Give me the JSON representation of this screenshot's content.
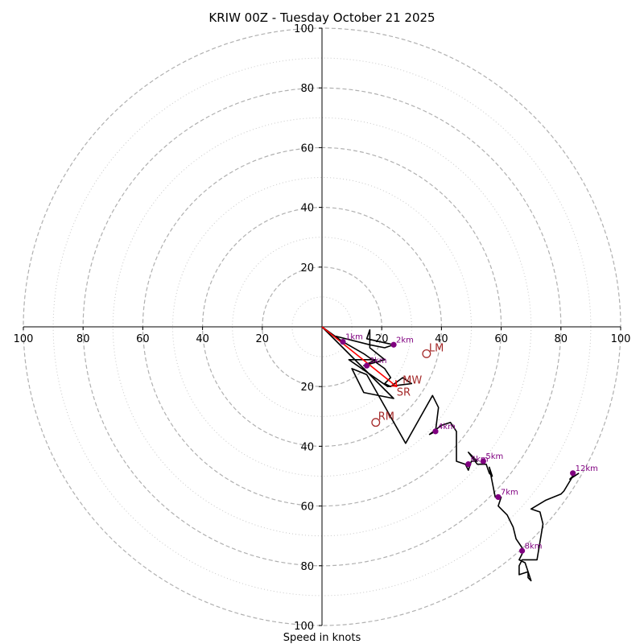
{
  "chart_data": {
    "type": "hodograph",
    "title": "KRIW 00Z - Tuesday October 21 2025",
    "xlabel": "Speed in knots",
    "xlim": [
      -100,
      100
    ],
    "ylim": [
      -100,
      100
    ],
    "tick_labels_x": [
      "100",
      "80",
      "60",
      "40",
      "20",
      "20",
      "40",
      "60",
      "80",
      "100"
    ],
    "tick_labels_y": [
      "100",
      "80",
      "60",
      "40",
      "20",
      "20",
      "40",
      "60",
      "80",
      "100"
    ],
    "major_rings": [
      20,
      40,
      60,
      80,
      100
    ],
    "minor_rings": [
      10,
      30,
      50,
      70,
      90
    ],
    "hodograph_trace": [
      [
        0,
        0
      ],
      [
        7,
        -5
      ],
      [
        14,
        -9
      ],
      [
        21,
        -14
      ],
      [
        23,
        -17
      ],
      [
        21,
        -19
      ],
      [
        23,
        -20
      ],
      [
        27,
        -17
      ],
      [
        30,
        -19
      ],
      [
        22,
        -20
      ],
      [
        9,
        -11
      ],
      [
        18,
        -11
      ],
      [
        14,
        -13
      ],
      [
        21,
        -11
      ],
      [
        16,
        -7
      ],
      [
        16,
        -1
      ],
      [
        15,
        -4
      ],
      [
        24,
        -6
      ],
      [
        21,
        -7
      ],
      [
        16,
        -6
      ],
      [
        4,
        -3
      ],
      [
        0,
        0
      ],
      [
        24,
        -24
      ],
      [
        14,
        -22
      ],
      [
        10,
        -14
      ],
      [
        15,
        -16
      ],
      [
        28,
        -39
      ],
      [
        37,
        -23
      ],
      [
        39,
        -27
      ],
      [
        38,
        -35
      ],
      [
        36,
        -36
      ],
      [
        40,
        -33
      ],
      [
        43,
        -32
      ],
      [
        45,
        -35
      ],
      [
        45,
        -45
      ],
      [
        48,
        -46
      ],
      [
        49,
        -48
      ],
      [
        50,
        -45
      ],
      [
        52,
        -45
      ],
      [
        49,
        -42
      ],
      [
        52,
        -46
      ],
      [
        55,
        -46
      ],
      [
        56,
        -49
      ],
      [
        57,
        -50
      ],
      [
        56,
        -47
      ],
      [
        58,
        -57
      ],
      [
        60,
        -57
      ],
      [
        59,
        -60
      ],
      [
        62,
        -63
      ],
      [
        64,
        -67
      ],
      [
        65,
        -71
      ],
      [
        67,
        -74
      ],
      [
        67,
        -76
      ],
      [
        66,
        -78
      ],
      [
        68,
        -79
      ],
      [
        69,
        -82
      ],
      [
        70,
        -85
      ],
      [
        69,
        -84
      ],
      [
        69,
        -82
      ],
      [
        66,
        -83
      ],
      [
        66,
        -80
      ],
      [
        67,
        -78
      ],
      [
        69,
        -78
      ],
      [
        72,
        -78
      ],
      [
        74,
        -66
      ],
      [
        73,
        -62
      ],
      [
        70,
        -61
      ],
      [
        75,
        -58
      ],
      [
        80,
        -56
      ],
      [
        81,
        -55
      ],
      [
        84,
        -50
      ],
      [
        83,
        -51
      ],
      [
        86,
        -49
      ]
    ],
    "height_markers": [
      {
        "label": "1km",
        "u": 7,
        "v": -5
      },
      {
        "label": "2km",
        "u": 24,
        "v": -6
      },
      {
        "label": "3km",
        "u": 15,
        "v": -13
      },
      {
        "label": "4km",
        "u": 38,
        "v": -35
      },
      {
        "label": "5km",
        "u": 54,
        "v": -45
      },
      {
        "label": "6km",
        "u": 49,
        "v": -46
      },
      {
        "label": "7km",
        "u": 59,
        "v": -57
      },
      {
        "label": "8km",
        "u": 67,
        "v": -75
      },
      {
        "label": "12km",
        "u": 84,
        "v": -49
      }
    ],
    "mean_wind_vector": {
      "u0": 0,
      "v0": 0,
      "u1": 25,
      "v1": -20
    },
    "motion_markers": [
      {
        "label": "LM",
        "u": 35,
        "v": -9
      },
      {
        "label": "RM",
        "u": 18,
        "v": -32
      }
    ],
    "motion_labels": [
      {
        "label": "MW",
        "u": 27,
        "v": -19
      },
      {
        "label": "SR",
        "u": 25,
        "v": -23
      }
    ],
    "colors": {
      "grid": "#b0b0b0",
      "trace": "#000000",
      "height_marker": "#800080",
      "mean_wind": "#ff0000",
      "motion": "#a52a2a"
    }
  }
}
